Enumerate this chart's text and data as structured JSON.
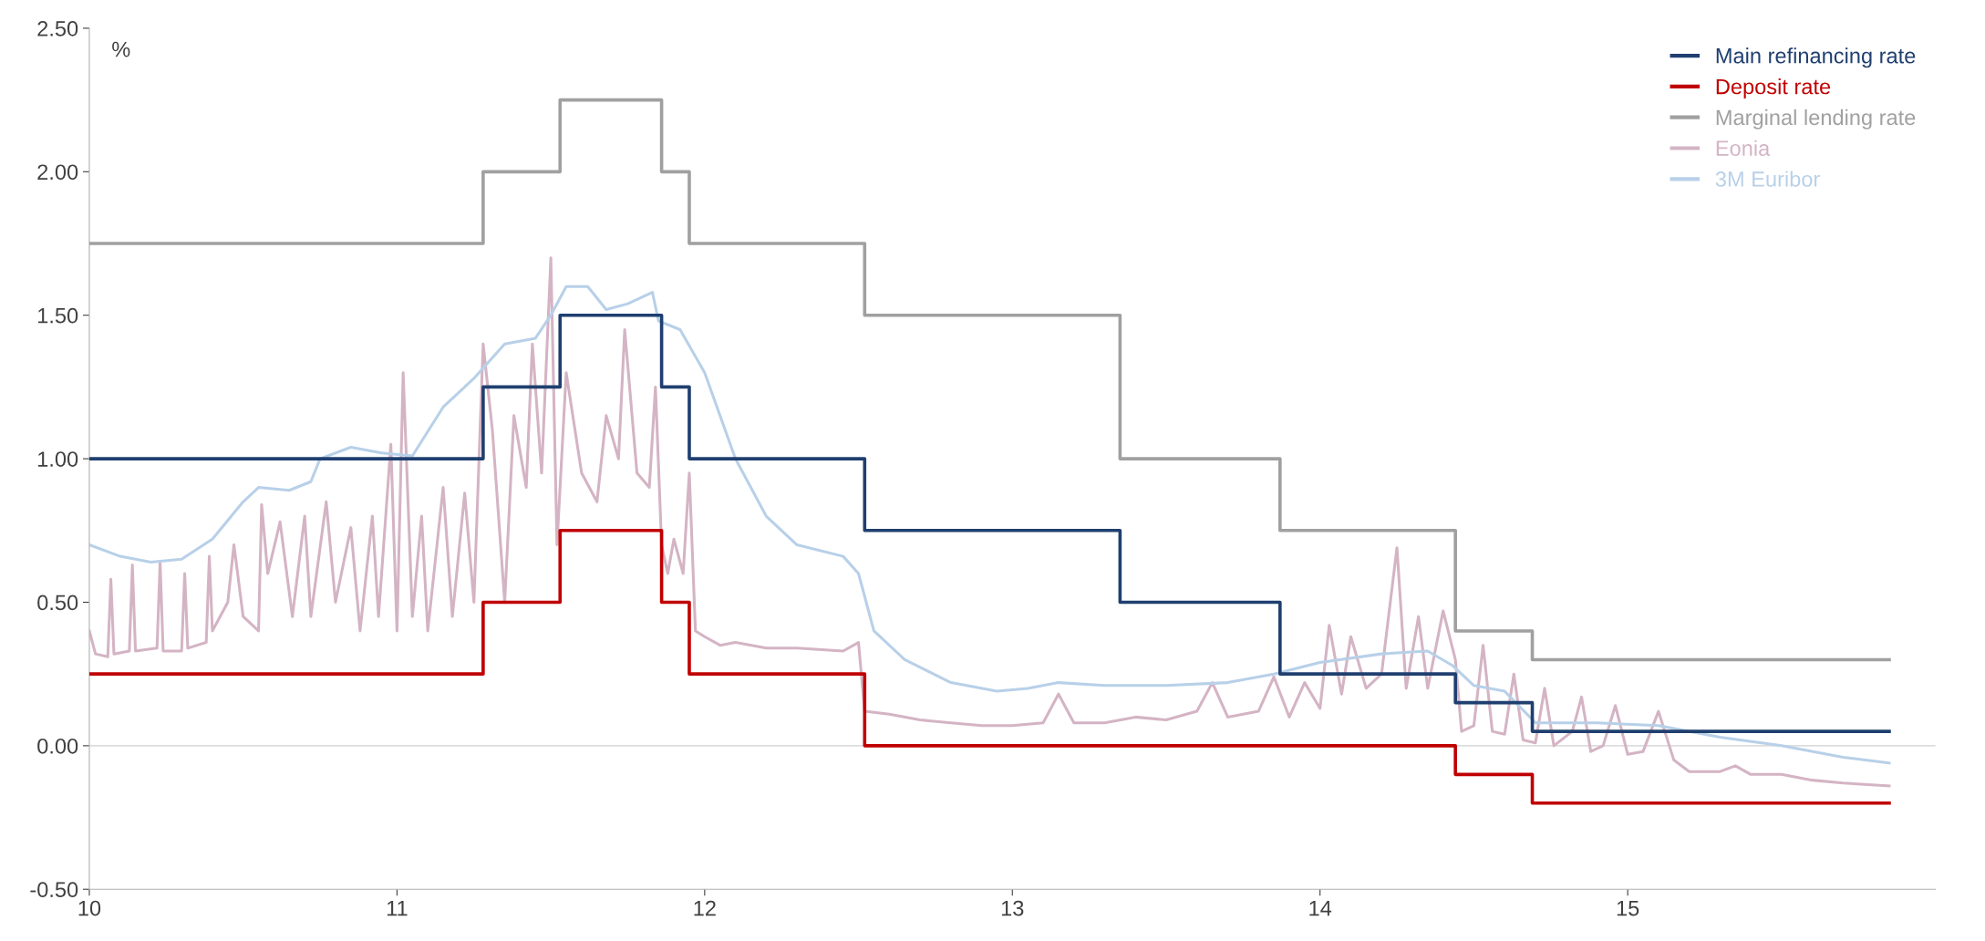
{
  "chart_data": {
    "type": "line",
    "annotations": [
      "%"
    ],
    "xlim": [
      10,
      16
    ],
    "xticks": [
      10,
      11,
      12,
      13,
      14,
      15
    ],
    "ylim": [
      -0.5,
      2.5
    ],
    "yticks": [
      {
        "value": -0.5,
        "label": "-0.50"
      },
      {
        "value": 0,
        "label": "0.00"
      },
      {
        "value": 0.5,
        "label": "0.50"
      },
      {
        "value": 1,
        "label": "1.00"
      },
      {
        "value": 1.5,
        "label": "1.50"
      },
      {
        "value": 2,
        "label": "2.00"
      },
      {
        "value": 2.5,
        "label": "2.50"
      }
    ],
    "grid": false,
    "legend": "top right",
    "ref_lines": [
      {
        "axis": "y",
        "value": 0,
        "color": "#d0d0d0"
      }
    ],
    "series": [
      {
        "name": "Main refinancing rate",
        "type": "step",
        "color": "#1f3f6f",
        "x": [
          10,
          11.28,
          11.53,
          11.86,
          11.95,
          12.52,
          13.35,
          13.87,
          14.44,
          14.69,
          15.85
        ],
        "values": [
          1.0,
          1.25,
          1.5,
          1.25,
          1.0,
          0.75,
          0.5,
          0.25,
          0.15,
          0.05,
          0.05
        ]
      },
      {
        "name": "Deposit rate",
        "type": "step",
        "color": "#c00000",
        "x": [
          10,
          11.28,
          11.53,
          11.86,
          11.95,
          12.52,
          14.44,
          14.69,
          15.85
        ],
        "values": [
          0.25,
          0.5,
          0.75,
          0.5,
          0.25,
          0,
          -0.1,
          -0.2,
          -0.2
        ]
      },
      {
        "name": "Marginal lending rate",
        "type": "step",
        "color": "#a0a0a0",
        "x": [
          10,
          11.28,
          11.53,
          11.86,
          11.95,
          12.52,
          13.35,
          13.87,
          14.44,
          14.69,
          15.85
        ],
        "values": [
          1.75,
          2,
          2.25,
          2,
          1.75,
          1.5,
          1,
          0.75,
          0.4,
          0.3,
          0.3
        ]
      },
      {
        "name": "Eonia",
        "color": "#d4b4c4",
        "x": [
          10.0,
          10.02,
          10.06,
          10.07,
          10.08,
          10.13,
          10.14,
          10.15,
          10.22,
          10.23,
          10.24,
          10.3,
          10.31,
          10.32,
          10.38,
          10.39,
          10.4,
          10.45,
          10.47,
          10.5,
          10.55,
          10.56,
          10.58,
          10.62,
          10.66,
          10.7,
          10.72,
          10.77,
          10.8,
          10.85,
          10.88,
          10.92,
          10.94,
          10.98,
          11.0,
          11.02,
          11.05,
          11.08,
          11.1,
          11.15,
          11.18,
          11.22,
          11.25,
          11.28,
          11.31,
          11.35,
          11.38,
          11.42,
          11.44,
          11.47,
          11.5,
          11.52,
          11.55,
          11.6,
          11.65,
          11.68,
          11.72,
          11.74,
          11.78,
          11.82,
          11.84,
          11.86,
          11.88,
          11.9,
          11.93,
          11.95,
          11.97,
          12.0,
          12.05,
          12.1,
          12.2,
          12.3,
          12.45,
          12.5,
          12.52,
          12.6,
          12.7,
          12.8,
          12.9,
          13.0,
          13.1,
          13.15,
          13.2,
          13.3,
          13.4,
          13.5,
          13.6,
          13.65,
          13.7,
          13.8,
          13.85,
          13.9,
          13.95,
          14.0,
          14.03,
          14.07,
          14.1,
          14.15,
          14.2,
          14.25,
          14.28,
          14.32,
          14.35,
          14.4,
          14.44,
          14.46,
          14.5,
          14.53,
          14.56,
          14.6,
          14.63,
          14.66,
          14.7,
          14.73,
          14.76,
          14.82,
          14.85,
          14.88,
          14.92,
          14.96,
          15.0,
          15.05,
          15.1,
          15.15,
          15.2,
          15.3,
          15.35,
          15.4,
          15.5,
          15.6,
          15.7,
          15.85
        ],
        "values": [
          0.4,
          0.32,
          0.31,
          0.58,
          0.32,
          0.33,
          0.63,
          0.33,
          0.34,
          0.64,
          0.33,
          0.33,
          0.6,
          0.34,
          0.36,
          0.66,
          0.4,
          0.5,
          0.7,
          0.45,
          0.4,
          0.84,
          0.6,
          0.78,
          0.45,
          0.8,
          0.45,
          0.85,
          0.5,
          0.76,
          0.4,
          0.8,
          0.45,
          1.05,
          0.4,
          1.3,
          0.45,
          0.8,
          0.4,
          0.9,
          0.45,
          0.88,
          0.5,
          1.4,
          1.1,
          0.5,
          1.15,
          0.9,
          1.4,
          0.95,
          1.7,
          0.7,
          1.3,
          0.95,
          0.85,
          1.15,
          1.0,
          1.45,
          0.95,
          0.9,
          1.25,
          0.7,
          0.6,
          0.72,
          0.6,
          0.95,
          0.4,
          0.38,
          0.35,
          0.36,
          0.34,
          0.34,
          0.33,
          0.36,
          0.12,
          0.11,
          0.09,
          0.08,
          0.07,
          0.07,
          0.08,
          0.18,
          0.08,
          0.08,
          0.1,
          0.09,
          0.12,
          0.22,
          0.1,
          0.12,
          0.24,
          0.1,
          0.22,
          0.13,
          0.42,
          0.18,
          0.38,
          0.2,
          0.25,
          0.69,
          0.2,
          0.45,
          0.2,
          0.47,
          0.3,
          0.05,
          0.07,
          0.35,
          0.05,
          0.04,
          0.25,
          0.02,
          0.01,
          0.2,
          0.0,
          0.05,
          0.17,
          -0.02,
          0.0,
          0.14,
          -0.03,
          -0.02,
          0.12,
          -0.05,
          -0.09,
          -0.09,
          -0.07,
          -0.1,
          -0.1,
          -0.12,
          -0.13,
          -0.14
        ]
      },
      {
        "name": "3M Euribor",
        "color": "#b8d0e8",
        "x": [
          10.0,
          10.1,
          10.2,
          10.3,
          10.4,
          10.5,
          10.55,
          10.65,
          10.72,
          10.75,
          10.85,
          10.95,
          11.05,
          11.15,
          11.25,
          11.35,
          11.45,
          11.5,
          11.55,
          11.62,
          11.68,
          11.75,
          11.83,
          11.85,
          11.92,
          12.0,
          12.1,
          12.2,
          12.3,
          12.45,
          12.5,
          12.55,
          12.65,
          12.8,
          12.95,
          13.05,
          13.15,
          13.3,
          13.5,
          13.7,
          13.85,
          14.0,
          14.2,
          14.35,
          14.43,
          14.5,
          14.6,
          14.7,
          14.9,
          15.1,
          15.3,
          15.5,
          15.7,
          15.85
        ],
        "values": [
          0.7,
          0.66,
          0.64,
          0.65,
          0.72,
          0.85,
          0.9,
          0.89,
          0.92,
          1.0,
          1.04,
          1.02,
          1.01,
          1.18,
          1.28,
          1.4,
          1.42,
          1.5,
          1.6,
          1.6,
          1.52,
          1.54,
          1.58,
          1.48,
          1.45,
          1.3,
          1.0,
          0.8,
          0.7,
          0.66,
          0.6,
          0.4,
          0.3,
          0.22,
          0.19,
          0.2,
          0.22,
          0.21,
          0.21,
          0.22,
          0.25,
          0.29,
          0.32,
          0.33,
          0.28,
          0.21,
          0.19,
          0.08,
          0.08,
          0.07,
          0.03,
          0.0,
          -0.04,
          -0.06
        ]
      }
    ]
  }
}
